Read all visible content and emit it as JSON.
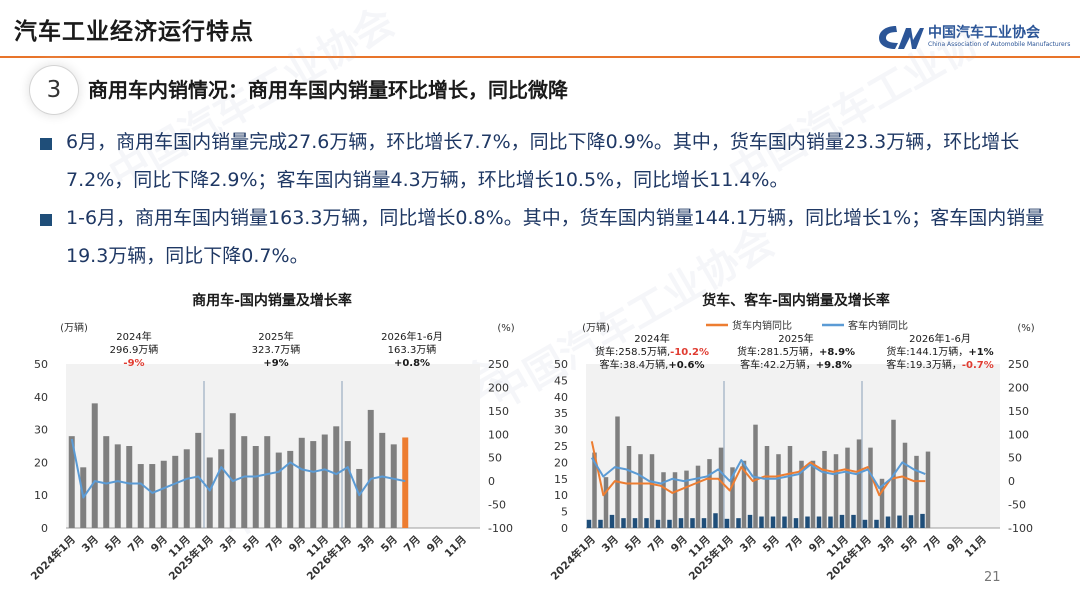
{
  "header": {
    "title": "汽车工业经济运行特点",
    "logo_cn": "中国汽车工业协会",
    "logo_en": "China Association of Automobile Manufacturers",
    "watermark": "中国汽车工业协会"
  },
  "section": {
    "number": "3",
    "heading": "商用车内销情况：商用车国内销量环比增长，同比微降"
  },
  "bullets": [
    "6月，商用车国内销量完成27.6万辆，环比增长7.7%，同比下降0.9%。其中，货车国内销量23.3万辆，环比增长7.2%，同比下降2.9%；客车国内销量4.3万辆，环比增长10.5%，同比增长11.4%。",
    "1-6月，商用车国内销量163.3万辆，同比增长0.8%。其中，货车国内销量144.1万辆，同比增长1%；客车国内销量19.3万辆，同比下降0.7%。"
  ],
  "page_number": "21",
  "colors": {
    "bar": "#7f7f7f",
    "bar_highlight": "#ed7d31",
    "line_blue": "#5b9bd5",
    "line_orange": "#ed7d31",
    "bus_bar": "#1f4e79",
    "red": "#e03c31"
  },
  "chart_data": [
    {
      "type": "bar",
      "title": "商用车-国内销量及增长率",
      "ylabel": "(万辆)",
      "y2label": "(%)",
      "ylim": [
        0,
        50
      ],
      "y2lim": [
        -100,
        250
      ],
      "yticks": [
        "0",
        "10",
        "20",
        "30",
        "40",
        "50"
      ],
      "y2ticks": [
        "-100",
        "-50",
        "0",
        "50",
        "100",
        "150",
        "200",
        "250"
      ],
      "xlabels": [
        "2024年1月",
        "3月",
        "5月",
        "7月",
        "9月",
        "11月",
        "2025年1月",
        "3月",
        "5月",
        "7月",
        "9月",
        "11月",
        "2026年1月",
        "3月",
        "5月",
        "7月",
        "9月",
        "11月"
      ],
      "x_label_every": 2,
      "num_slots": 36,
      "separators_after": [
        12,
        24
      ],
      "annotations": [
        {
          "lines": [
            "2024年",
            "296.9万辆"
          ],
          "growth": "-9%",
          "growth_red": true
        },
        {
          "lines": [
            "2025年",
            "323.7万辆"
          ],
          "growth": "+9%",
          "growth_red": false
        },
        {
          "lines": [
            "2026年1-6月",
            "163.3万辆"
          ],
          "growth": "+0.8%",
          "growth_red": false
        }
      ],
      "series": [
        {
          "kind": "bar",
          "values": [
            28,
            18.5,
            38,
            28,
            25.5,
            25,
            19.5,
            19.5,
            20.5,
            22,
            24,
            29,
            21.5,
            24,
            35,
            28,
            25,
            28,
            23,
            23.5,
            27.5,
            26.5,
            28.5,
            31,
            26.5,
            18,
            36,
            29,
            25.5,
            27.6,
            null,
            null,
            null,
            null,
            null,
            null
          ],
          "highlight_index": 29
        },
        {
          "kind": "line",
          "values": [
            90,
            -35,
            0,
            -5,
            0,
            -5,
            -5,
            -25,
            -15,
            -5,
            5,
            10,
            -20,
            30,
            0,
            10,
            10,
            15,
            20,
            40,
            25,
            20,
            25,
            15,
            30,
            -30,
            5,
            10,
            5,
            0,
            null,
            null,
            null,
            null,
            null,
            null
          ]
        }
      ]
    },
    {
      "type": "bar",
      "title": "货车、客车-国内销量及增长率",
      "ylabel": "(万辆)",
      "y2label": "(%)",
      "ylim": [
        0,
        50
      ],
      "y2lim": [
        -100,
        250
      ],
      "yticks": [
        "0",
        "5",
        "10",
        "15",
        "20",
        "25",
        "30",
        "35",
        "40",
        "45",
        "50"
      ],
      "y2ticks": [
        "-100",
        "-50",
        "0",
        "50",
        "100",
        "150",
        "200",
        "250"
      ],
      "xlabels": [
        "2024年1月",
        "3月",
        "5月",
        "7月",
        "9月",
        "11月",
        "2025年1月",
        "3月",
        "5月",
        "7月",
        "9月",
        "11月",
        "2026年1月",
        "3月",
        "5月",
        "7月",
        "9月",
        "11月"
      ],
      "x_label_every": 2,
      "num_slots": 36,
      "separators_after": [
        12,
        24
      ],
      "legend": [
        "货车内销同比",
        "客车内销同比"
      ],
      "annotations": [
        {
          "lines": [
            "2024年"
          ],
          "l2": "货车:258.5万辆,",
          "g2": "-10.2%",
          "g2_red": true,
          "l3": "客车:38.4万辆,",
          "g3": "+0.6%",
          "g3_red": false
        },
        {
          "lines": [
            "2025年"
          ],
          "l2": "货车:281.5万辆，",
          "g2": "+8.9%",
          "g2_red": false,
          "l3": "客车:42.2万辆，",
          "g3": "+9.8%",
          "g3_red": false
        },
        {
          "lines": [
            "2026年1-6月"
          ],
          "l2": "货车:144.1万辆，",
          "g2": "+1%",
          "g2_red": false,
          "l3": "客车:19.3万辆，",
          "g3": "-0.7%",
          "g3_red": true
        }
      ],
      "series": [
        {
          "name": "货车",
          "kind": "bar",
          "values": [
            23,
            15.5,
            34,
            25,
            22.5,
            22.5,
            17,
            17,
            17.5,
            19,
            21,
            24.5,
            18.5,
            20.5,
            31.5,
            25,
            22.5,
            25,
            20.5,
            20.5,
            23.5,
            22.5,
            24.5,
            27,
            24.5,
            15,
            33,
            26,
            22,
            23.3,
            null,
            null,
            null,
            null,
            null,
            null
          ]
        },
        {
          "name": "客车",
          "kind": "bar",
          "values": [
            2.5,
            2.5,
            4,
            3,
            3,
            3,
            2.5,
            2.5,
            3,
            3,
            3,
            4.5,
            2.8,
            3,
            4,
            3.5,
            3.5,
            3.5,
            3,
            3.5,
            3.5,
            3.5,
            4,
            4,
            2.5,
            2.5,
            3.5,
            3.8,
            3.9,
            4.3,
            null,
            null,
            null,
            null,
            null,
            null
          ]
        },
        {
          "name": "货车内销同比",
          "kind": "line",
          "values": [
            85,
            -30,
            0,
            -5,
            -5,
            -5,
            -10,
            -25,
            -15,
            -5,
            5,
            5,
            -20,
            30,
            0,
            10,
            10,
            15,
            20,
            40,
            25,
            20,
            25,
            20,
            30,
            -30,
            5,
            10,
            0,
            0,
            null,
            null,
            null,
            null,
            null,
            null
          ]
        },
        {
          "name": "客车内销同比",
          "kind": "line",
          "values": [
            50,
            10,
            30,
            25,
            15,
            0,
            -5,
            5,
            0,
            5,
            10,
            25,
            0,
            45,
            10,
            5,
            5,
            10,
            15,
            35,
            20,
            15,
            20,
            15,
            25,
            -15,
            5,
            40,
            25,
            15,
            null,
            null,
            null,
            null,
            null,
            null
          ]
        }
      ]
    }
  ]
}
